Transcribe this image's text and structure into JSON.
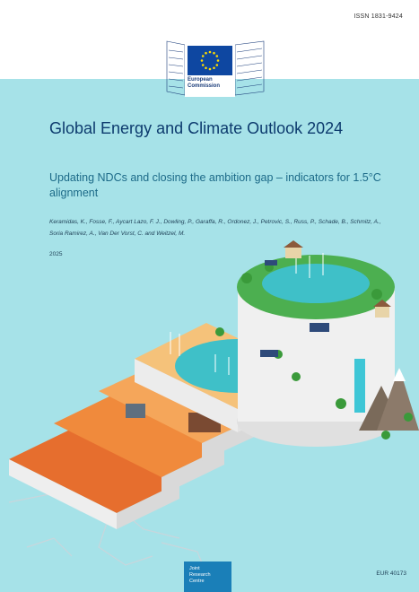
{
  "header": {
    "issn": "ISSN 1831-9424"
  },
  "logo": {
    "name_line1": "European",
    "name_line2": "Commission"
  },
  "cover": {
    "title": "Global Energy and Climate Outlook 2024",
    "subtitle": "Updating NDCs and closing the ambition gap – indicators for 1.5°C alignment",
    "authors": "Keramidas, K., Fosse, F., Aycart Lazo, F. J., Dowling, P., Garaffa, R., Ordonez, J., Petrovic, S., Russ, P., Schade, B., Schmitz, A., Soria Ramirez, A., Van Der Vorst, C. and Weitzel, M.",
    "year": "2025"
  },
  "footer": {
    "jrc_line1": "Joint",
    "jrc_line2": "Research",
    "jrc_line3": "Centre",
    "report_number": "EUR 40173"
  },
  "colors": {
    "background": "#a6e2e8",
    "title": "#0d3b6e",
    "subtitle": "#1c6a88",
    "eu_blue": "#0e47a1",
    "eu_star": "#ffdd00",
    "jrc_blue": "#1a7fb8"
  },
  "icons": [
    "eu-flag-icon",
    "commission-building-icon"
  ]
}
